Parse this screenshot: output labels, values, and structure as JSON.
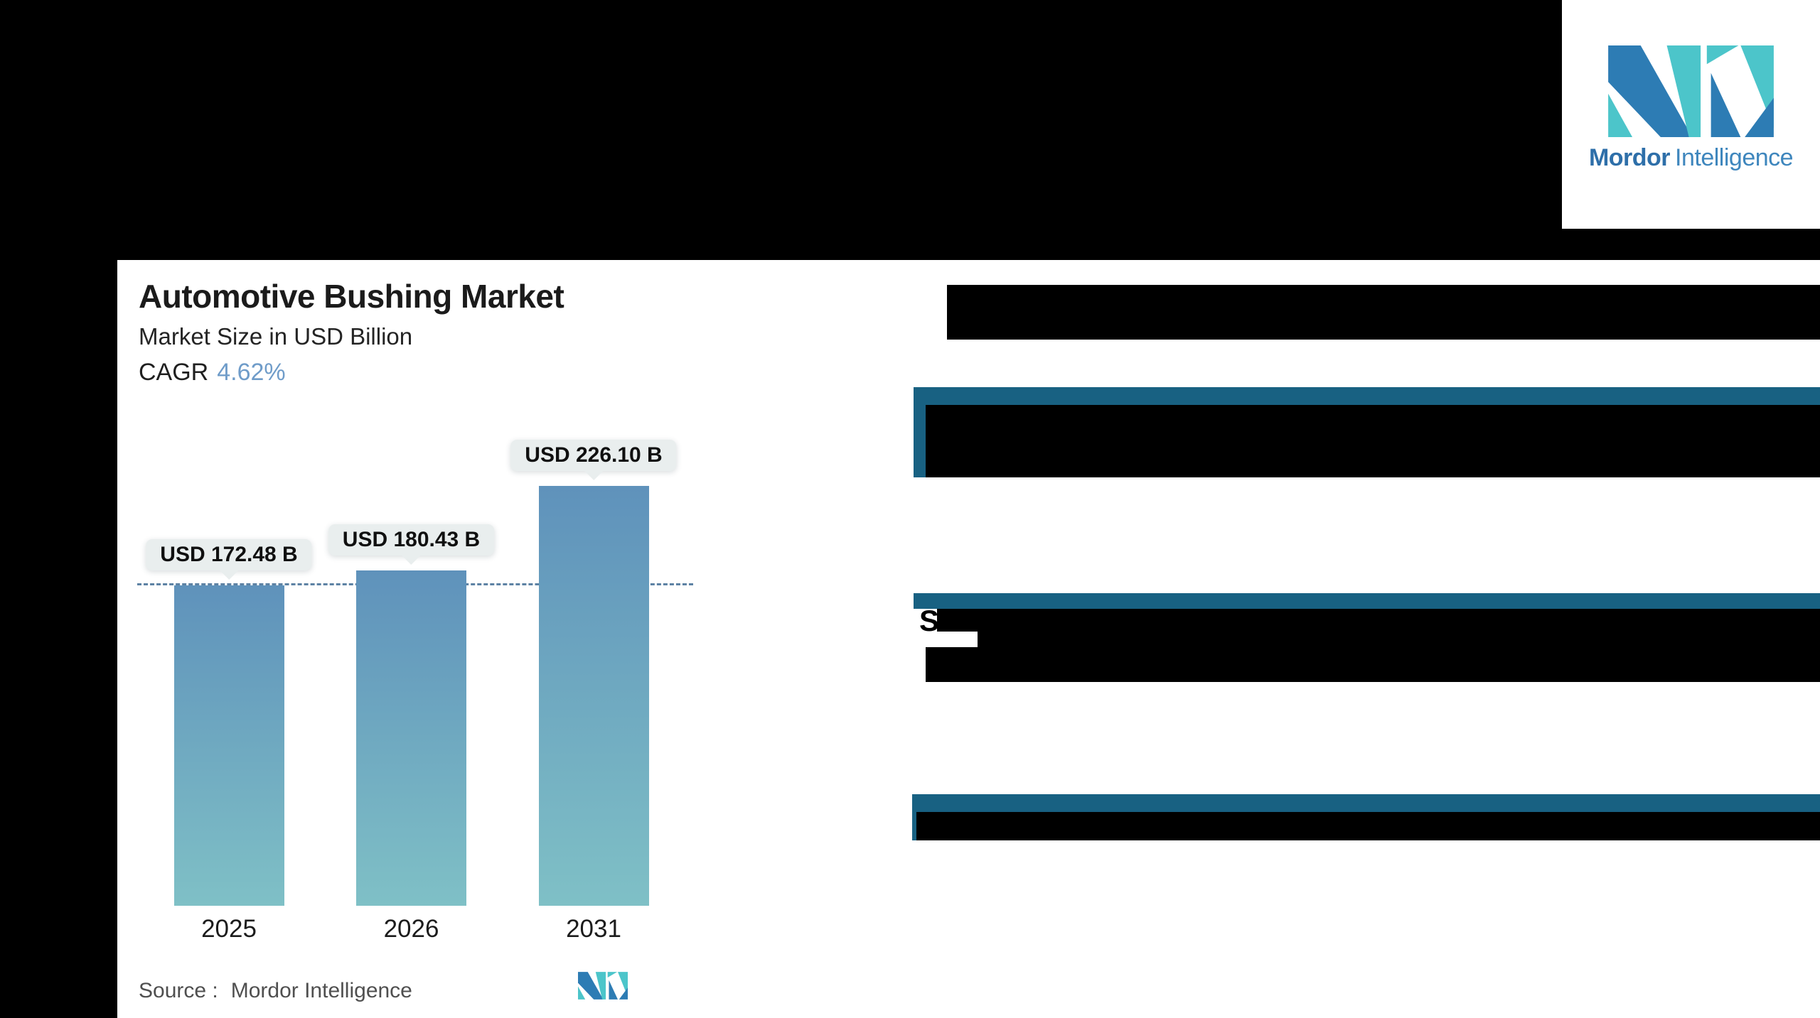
{
  "header": {
    "logo": {
      "brand_bold": "Mordor",
      "brand_light": "Intelligence"
    }
  },
  "chart_panel": {
    "title": "Automotive Bushing Market",
    "subtitle": "Market Size in USD Billion",
    "cagr_label": "CAGR",
    "cagr_value": "4.62%",
    "source_label": "Source :",
    "source_brand": "Mordor Intelligence"
  },
  "chart_data": {
    "type": "bar",
    "title": "Automotive Bushing Market",
    "subtitle": "Market Size in USD Billion",
    "unit": "USD Billion",
    "cagr_percent": 4.62,
    "categories": [
      "2025",
      "2026",
      "2031"
    ],
    "values": [
      172.48,
      180.43,
      226.1
    ],
    "value_labels": [
      "USD 172.48 B",
      "USD 180.43 B",
      "USD 226.10 B"
    ],
    "reference_line": {
      "value": 172.48,
      "style": "dashed"
    },
    "ylim": [
      0,
      240
    ],
    "grid": false,
    "legend": false,
    "source": "Mordor Intelligence"
  },
  "redactions": {
    "note": "right-hand slide content blacked out",
    "sections": [
      {
        "kind": "black-bar"
      },
      {
        "kind": "blue-header-with-black-body"
      },
      {
        "kind": "blue-header-with-black-body",
        "visible_text": "S"
      },
      {
        "kind": "blue-header-with-black-body"
      }
    ]
  },
  "colors": {
    "accent_header_blue": "#186182",
    "bar_gradient_top": "#5f92bb",
    "bar_gradient_bottom": "#7fc0c6",
    "cagr_value_blue": "#6f9cc9",
    "dashed_line": "#5d82a4",
    "tooltip_bg": "#e9eeee",
    "logo_blue": "#2d7cb4",
    "logo_teal": "#4cc5ca",
    "banner_black": "#000000"
  }
}
